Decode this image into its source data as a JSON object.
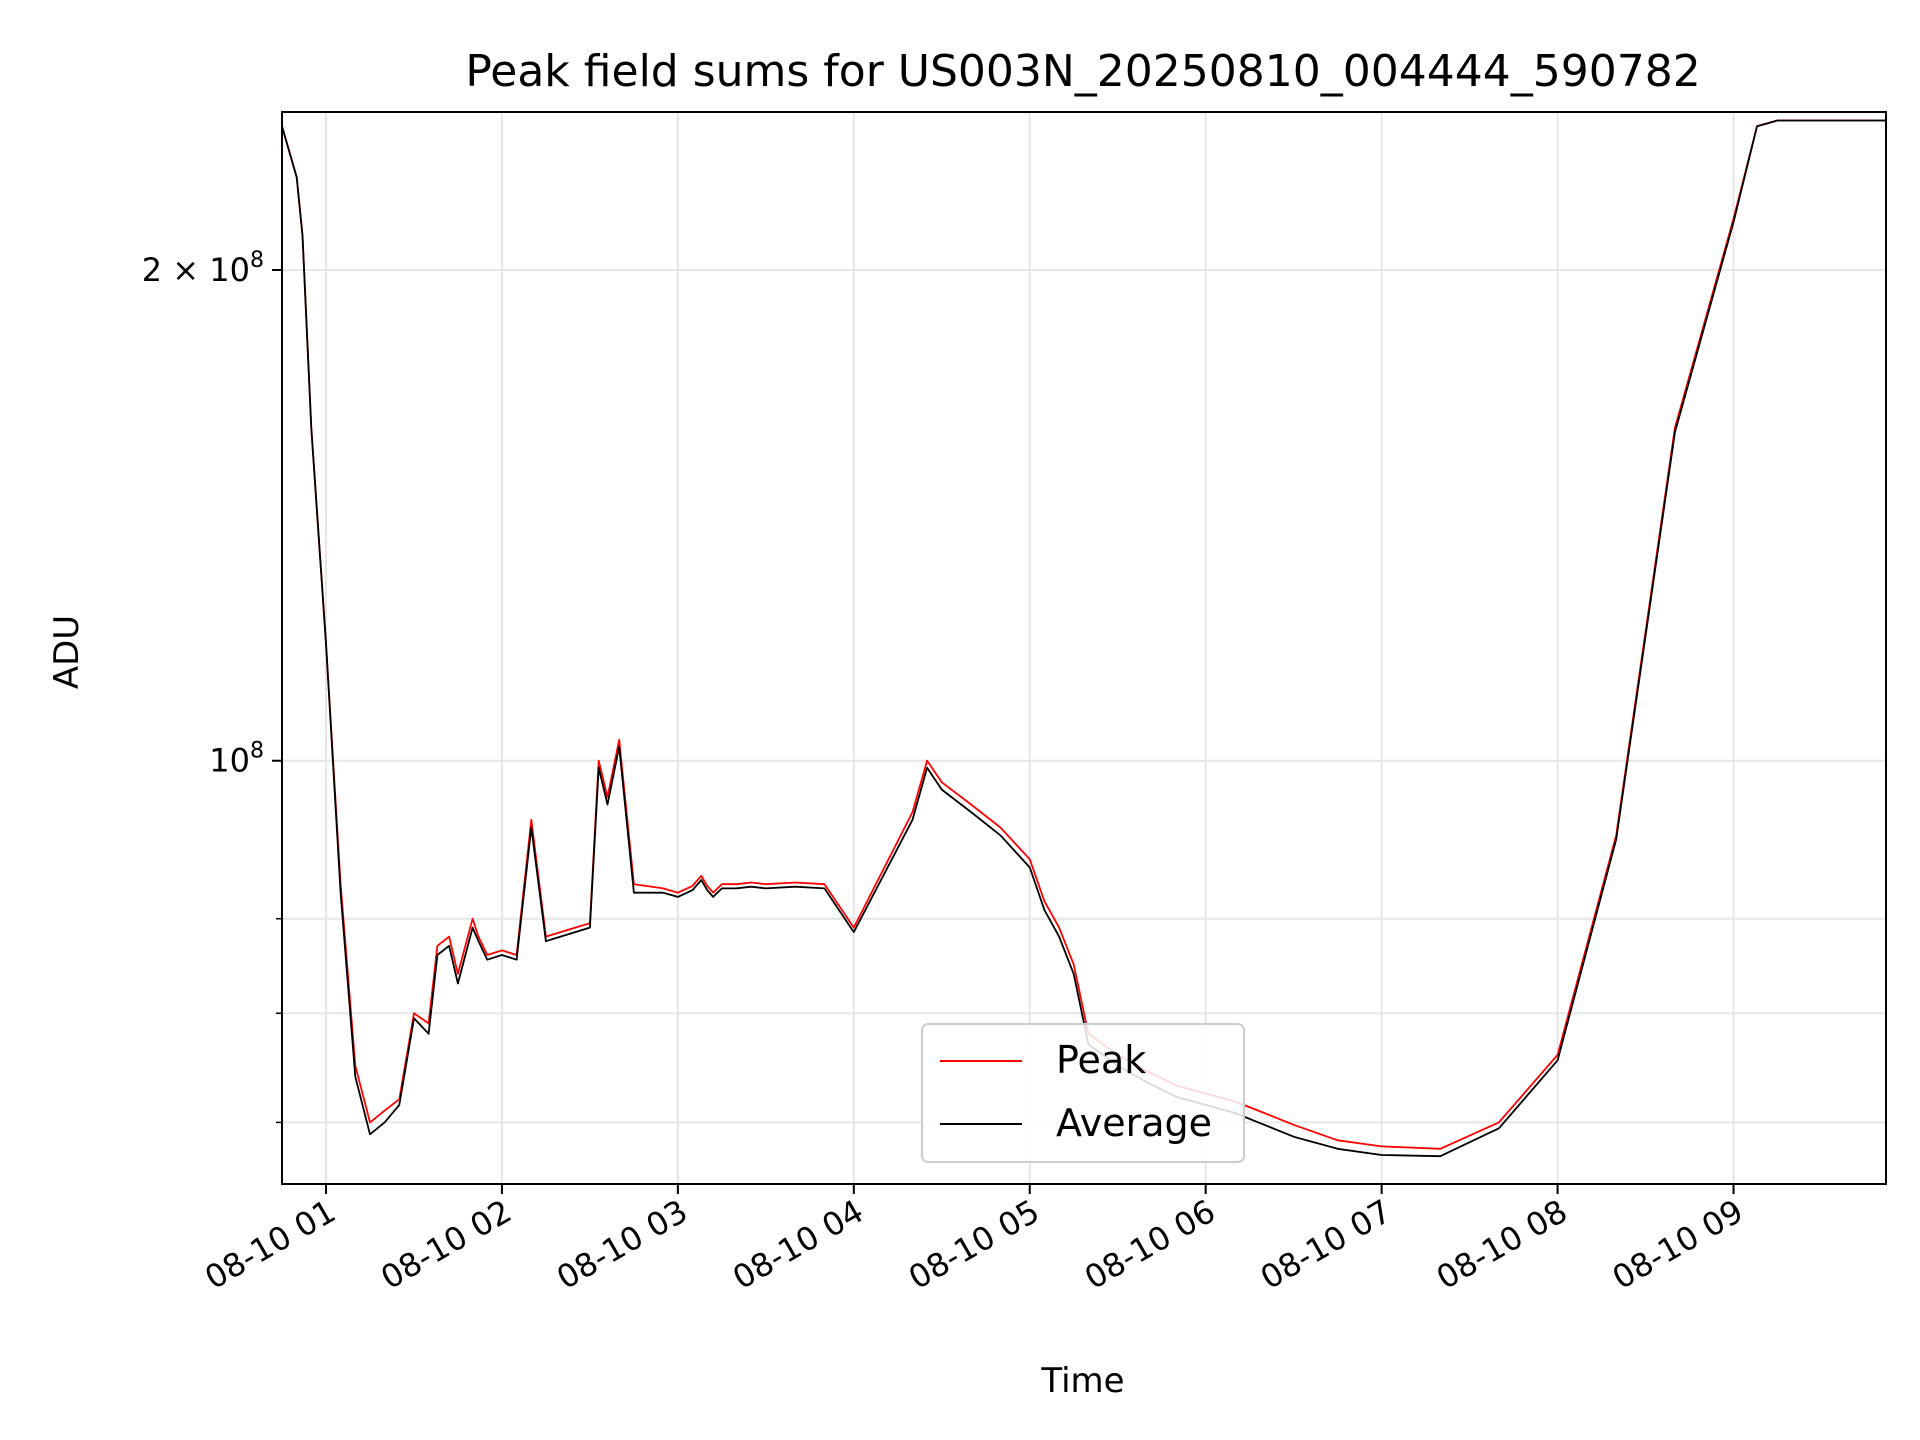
{
  "chart_data": {
    "type": "line",
    "title": "Peak field sums for US003N_20250810_004444_590782",
    "xlabel": "Time",
    "ylabel": "ADU",
    "y_scale": "log",
    "ylim": [
      55000000,
      250000000
    ],
    "xlim": [
      "2025-08-10 00:45",
      "2025-08-10 09:52"
    ],
    "grid": true,
    "legend_position": "lower-center",
    "x_ticks": [
      {
        "at": "2025-08-10 01:00",
        "label": "08-10 01"
      },
      {
        "at": "2025-08-10 02:00",
        "label": "08-10 02"
      },
      {
        "at": "2025-08-10 03:00",
        "label": "08-10 03"
      },
      {
        "at": "2025-08-10 04:00",
        "label": "08-10 04"
      },
      {
        "at": "2025-08-10 05:00",
        "label": "08-10 05"
      },
      {
        "at": "2025-08-10 06:00",
        "label": "08-10 06"
      },
      {
        "at": "2025-08-10 07:00",
        "label": "08-10 07"
      },
      {
        "at": "2025-08-10 08:00",
        "label": "08-10 08"
      },
      {
        "at": "2025-08-10 09:00",
        "label": "08-10 09"
      }
    ],
    "y_major_ticks": [
      {
        "value": 100000000,
        "base": "10",
        "exp": "8",
        "coef": ""
      },
      {
        "value": 200000000,
        "base": "10",
        "exp": "8",
        "coef": "2 × "
      }
    ],
    "y_minor_ticks": [
      60000000,
      70000000,
      80000000
    ],
    "series": [
      {
        "name": "Peak",
        "color": "#ff0000",
        "x": [
          "2025-08-10 00:45",
          "2025-08-10 00:50",
          "2025-08-10 00:52",
          "2025-08-10 00:55",
          "2025-08-10 01:00",
          "2025-08-10 01:05",
          "2025-08-10 01:10",
          "2025-08-10 01:15",
          "2025-08-10 01:20",
          "2025-08-10 01:25",
          "2025-08-10 01:30",
          "2025-08-10 01:35",
          "2025-08-10 01:38",
          "2025-08-10 01:42",
          "2025-08-10 01:45",
          "2025-08-10 01:50",
          "2025-08-10 01:52",
          "2025-08-10 01:55",
          "2025-08-10 02:00",
          "2025-08-10 02:05",
          "2025-08-10 02:10",
          "2025-08-10 02:15",
          "2025-08-10 02:20",
          "2025-08-10 02:25",
          "2025-08-10 02:30",
          "2025-08-10 02:33",
          "2025-08-10 02:36",
          "2025-08-10 02:40",
          "2025-08-10 02:45",
          "2025-08-10 02:55",
          "2025-08-10 03:00",
          "2025-08-10 03:05",
          "2025-08-10 03:08",
          "2025-08-10 03:10",
          "2025-08-10 03:12",
          "2025-08-10 03:15",
          "2025-08-10 03:20",
          "2025-08-10 03:25",
          "2025-08-10 03:30",
          "2025-08-10 03:40",
          "2025-08-10 03:50",
          "2025-08-10 04:00",
          "2025-08-10 04:20",
          "2025-08-10 04:25",
          "2025-08-10 04:30",
          "2025-08-10 04:40",
          "2025-08-10 04:50",
          "2025-08-10 05:00",
          "2025-08-10 05:05",
          "2025-08-10 05:10",
          "2025-08-10 05:15",
          "2025-08-10 05:20",
          "2025-08-10 05:30",
          "2025-08-10 05:40",
          "2025-08-10 05:50",
          "2025-08-10 06:00",
          "2025-08-10 06:10",
          "2025-08-10 06:20",
          "2025-08-10 06:30",
          "2025-08-10 06:45",
          "2025-08-10 07:00",
          "2025-08-10 07:20",
          "2025-08-10 07:40",
          "2025-08-10 08:00",
          "2025-08-10 08:20",
          "2025-08-10 08:40",
          "2025-08-10 09:00",
          "2025-08-10 09:08",
          "2025-08-10 09:15",
          "2025-08-10 09:20",
          "2025-08-10 09:25",
          "2025-08-10 09:30",
          "2025-08-10 09:35",
          "2025-08-10 09:40",
          "2025-08-10 09:45",
          "2025-08-10 09:52"
        ],
        "y": [
          245000000,
          228000000,
          210000000,
          160000000,
          118000000,
          84000000,
          65000000,
          60000000,
          61000000,
          62000000,
          70000000,
          69000000,
          77000000,
          78000000,
          74000000,
          80000000,
          78000000,
          76000000,
          76500000,
          76000000,
          92000000,
          78000000,
          78500000,
          79000000,
          79500000,
          100000000,
          95000000,
          103000000,
          84000000,
          83500000,
          83000000,
          83800000,
          85000000,
          83800000,
          83000000,
          84000000,
          84000000,
          84200000,
          84000000,
          84200000,
          84000000,
          79000000,
          93000000,
          100000000,
          97000000,
          94000000,
          91000000,
          87000000,
          82000000,
          79000000,
          75000000,
          68000000,
          66000000,
          64500000,
          63200000,
          62500000,
          61800000,
          60800000,
          59800000,
          58500000,
          58000000,
          57800000,
          60000000,
          66000000,
          90000000,
          160000000,
          215000000,
          245000000,
          247000000,
          247000000,
          247000000,
          247000000,
          247000000,
          247000000,
          247000000,
          247000000
        ]
      },
      {
        "name": "Average",
        "color": "#000000",
        "x": [
          "2025-08-10 00:45",
          "2025-08-10 00:50",
          "2025-08-10 00:52",
          "2025-08-10 00:55",
          "2025-08-10 01:00",
          "2025-08-10 01:05",
          "2025-08-10 01:10",
          "2025-08-10 01:15",
          "2025-08-10 01:20",
          "2025-08-10 01:25",
          "2025-08-10 01:30",
          "2025-08-10 01:35",
          "2025-08-10 01:38",
          "2025-08-10 01:42",
          "2025-08-10 01:45",
          "2025-08-10 01:50",
          "2025-08-10 01:52",
          "2025-08-10 01:55",
          "2025-08-10 02:00",
          "2025-08-10 02:05",
          "2025-08-10 02:10",
          "2025-08-10 02:15",
          "2025-08-10 02:20",
          "2025-08-10 02:25",
          "2025-08-10 02:30",
          "2025-08-10 02:33",
          "2025-08-10 02:36",
          "2025-08-10 02:40",
          "2025-08-10 02:45",
          "2025-08-10 02:55",
          "2025-08-10 03:00",
          "2025-08-10 03:05",
          "2025-08-10 03:08",
          "2025-08-10 03:10",
          "2025-08-10 03:12",
          "2025-08-10 03:15",
          "2025-08-10 03:20",
          "2025-08-10 03:25",
          "2025-08-10 03:30",
          "2025-08-10 03:40",
          "2025-08-10 03:50",
          "2025-08-10 04:00",
          "2025-08-10 04:20",
          "2025-08-10 04:25",
          "2025-08-10 04:30",
          "2025-08-10 04:40",
          "2025-08-10 04:50",
          "2025-08-10 05:00",
          "2025-08-10 05:05",
          "2025-08-10 05:10",
          "2025-08-10 05:15",
          "2025-08-10 05:20",
          "2025-08-10 05:30",
          "2025-08-10 05:40",
          "2025-08-10 05:50",
          "2025-08-10 06:00",
          "2025-08-10 06:10",
          "2025-08-10 06:20",
          "2025-08-10 06:30",
          "2025-08-10 06:45",
          "2025-08-10 07:00",
          "2025-08-10 07:20",
          "2025-08-10 07:40",
          "2025-08-10 08:00",
          "2025-08-10 08:20",
          "2025-08-10 08:40",
          "2025-08-10 09:00",
          "2025-08-10 09:08",
          "2025-08-10 09:15",
          "2025-08-10 09:20",
          "2025-08-10 09:25",
          "2025-08-10 09:30",
          "2025-08-10 09:35",
          "2025-08-10 09:40",
          "2025-08-10 09:45",
          "2025-08-10 09:52"
        ],
        "y": [
          245000000,
          228000000,
          210000000,
          160000000,
          118000000,
          83000000,
          64000000,
          59000000,
          60000000,
          61500000,
          69500000,
          68000000,
          76000000,
          77000000,
          73000000,
          79000000,
          77500000,
          75500000,
          76000000,
          75500000,
          91000000,
          77500000,
          78000000,
          78500000,
          79000000,
          99000000,
          94000000,
          102000000,
          83000000,
          83000000,
          82500000,
          83300000,
          84500000,
          83300000,
          82500000,
          83500000,
          83500000,
          83700000,
          83500000,
          83700000,
          83500000,
          78500000,
          92000000,
          99000000,
          96000000,
          93000000,
          90000000,
          86000000,
          81000000,
          78000000,
          74000000,
          67000000,
          65000000,
          63500000,
          62200000,
          61500000,
          60800000,
          59800000,
          58800000,
          57800000,
          57300000,
          57200000,
          59500000,
          65500000,
          89500000,
          159000000,
          214000000,
          245000000,
          247000000,
          247000000,
          247000000,
          247000000,
          247000000,
          247000000,
          247000000,
          247000000
        ]
      }
    ]
  }
}
